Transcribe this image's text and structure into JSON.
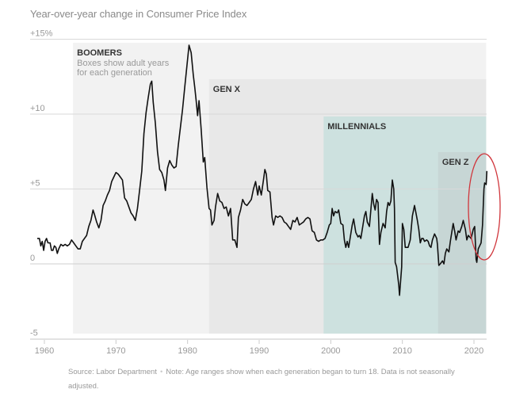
{
  "chart_data": {
    "type": "line",
    "title": "Year-over-year change in Consumer Price Index",
    "xlabel": "",
    "ylabel": "",
    "xlim": [
      1958.5,
      2022
    ],
    "ylim": [
      -5,
      15
    ],
    "grid": true,
    "y_ticks": [
      {
        "value": 15,
        "label": "+15%"
      },
      {
        "value": 10,
        "label": "+10"
      },
      {
        "value": 5,
        "label": "+5"
      },
      {
        "value": 0,
        "label": "0"
      },
      {
        "value": -5,
        "label": "-5"
      }
    ],
    "x_ticks": [
      {
        "value": 1960,
        "label": "1960"
      },
      {
        "value": 1970,
        "label": "1970"
      },
      {
        "value": 1980,
        "label": "1980"
      },
      {
        "value": 1990,
        "label": "1990"
      },
      {
        "value": 2000,
        "label": "2000"
      },
      {
        "value": 2010,
        "label": "2010"
      },
      {
        "value": 2020,
        "label": "2020"
      }
    ],
    "generations": [
      {
        "name": "BOOMERS",
        "start": 1964,
        "end": 2021.7,
        "subtitle": [
          "Boxes show adult years",
          "for each generation"
        ],
        "fill": "#f2f2f2"
      },
      {
        "name": "GEN X",
        "start": 1983,
        "end": 2021.7,
        "fill": "#e8e8e8"
      },
      {
        "name": "MILLENNIALS",
        "start": 1999,
        "end": 2021.7,
        "fill": "#cde1df"
      },
      {
        "name": "GEN Z",
        "start": 2015,
        "end": 2021.7,
        "fill": "#c7d6d5"
      }
    ],
    "annotation": {
      "type": "ellipse",
      "color": "#d0353b",
      "around": "2021 spike"
    },
    "series": [
      {
        "name": "CPI year-over-year change (%)",
        "color": "#111111",
        "points": [
          [
            1959.0,
            1.7
          ],
          [
            1959.3,
            1.7
          ],
          [
            1959.5,
            1.2
          ],
          [
            1959.7,
            1.5
          ],
          [
            1959.9,
            0.9
          ],
          [
            1960.1,
            1.5
          ],
          [
            1960.3,
            1.7
          ],
          [
            1960.5,
            1.4
          ],
          [
            1960.8,
            1.4
          ],
          [
            1961.0,
            0.9
          ],
          [
            1961.2,
            0.9
          ],
          [
            1961.4,
            1.2
          ],
          [
            1961.6,
            1.1
          ],
          [
            1961.8,
            0.7
          ],
          [
            1962.0,
            1.0
          ],
          [
            1962.3,
            1.3
          ],
          [
            1962.6,
            1.2
          ],
          [
            1962.9,
            1.3
          ],
          [
            1963.2,
            1.2
          ],
          [
            1963.5,
            1.3
          ],
          [
            1963.8,
            1.6
          ],
          [
            1964.1,
            1.4
          ],
          [
            1964.4,
            1.2
          ],
          [
            1964.7,
            1.0
          ],
          [
            1965.0,
            1.0
          ],
          [
            1965.3,
            1.5
          ],
          [
            1965.6,
            1.7
          ],
          [
            1965.9,
            1.9
          ],
          [
            1966.2,
            2.5
          ],
          [
            1966.5,
            2.9
          ],
          [
            1966.8,
            3.6
          ],
          [
            1967.0,
            3.3
          ],
          [
            1967.3,
            2.8
          ],
          [
            1967.6,
            2.4
          ],
          [
            1967.9,
            2.9
          ],
          [
            1968.2,
            3.9
          ],
          [
            1968.5,
            4.2
          ],
          [
            1968.8,
            4.6
          ],
          [
            1969.1,
            4.9
          ],
          [
            1969.4,
            5.5
          ],
          [
            1969.7,
            5.8
          ],
          [
            1970.0,
            6.1
          ],
          [
            1970.3,
            6.0
          ],
          [
            1970.6,
            5.8
          ],
          [
            1970.9,
            5.6
          ],
          [
            1971.2,
            4.4
          ],
          [
            1971.5,
            4.2
          ],
          [
            1971.8,
            3.8
          ],
          [
            1972.1,
            3.4
          ],
          [
            1972.4,
            3.2
          ],
          [
            1972.7,
            2.9
          ],
          [
            1973.0,
            3.7
          ],
          [
            1973.3,
            4.9
          ],
          [
            1973.6,
            6.2
          ],
          [
            1973.9,
            8.7
          ],
          [
            1974.2,
            10.1
          ],
          [
            1974.5,
            11.1
          ],
          [
            1974.8,
            12.0
          ],
          [
            1975.0,
            12.2
          ],
          [
            1975.2,
            10.8
          ],
          [
            1975.5,
            9.4
          ],
          [
            1975.8,
            7.5
          ],
          [
            1976.1,
            6.3
          ],
          [
            1976.4,
            6.1
          ],
          [
            1976.7,
            5.6
          ],
          [
            1976.9,
            4.9
          ],
          [
            1977.2,
            6.4
          ],
          [
            1977.5,
            6.9
          ],
          [
            1977.8,
            6.6
          ],
          [
            1978.1,
            6.4
          ],
          [
            1978.4,
            6.5
          ],
          [
            1978.7,
            7.9
          ],
          [
            1979.0,
            9.1
          ],
          [
            1979.3,
            10.3
          ],
          [
            1979.6,
            11.8
          ],
          [
            1979.9,
            13.2
          ],
          [
            1980.2,
            14.6
          ],
          [
            1980.5,
            14.1
          ],
          [
            1980.8,
            12.6
          ],
          [
            1981.0,
            11.8
          ],
          [
            1981.2,
            10.9
          ],
          [
            1981.4,
            9.9
          ],
          [
            1981.6,
            10.9
          ],
          [
            1981.9,
            9.0
          ],
          [
            1982.2,
            6.8
          ],
          [
            1982.4,
            7.1
          ],
          [
            1982.7,
            5.1
          ],
          [
            1983.0,
            3.7
          ],
          [
            1983.2,
            3.6
          ],
          [
            1983.4,
            2.6
          ],
          [
            1983.7,
            2.9
          ],
          [
            1983.9,
            3.8
          ],
          [
            1984.2,
            4.7
          ],
          [
            1984.5,
            4.2
          ],
          [
            1984.8,
            4.1
          ],
          [
            1985.1,
            3.7
          ],
          [
            1985.4,
            3.8
          ],
          [
            1985.7,
            3.2
          ],
          [
            1986.0,
            3.7
          ],
          [
            1986.3,
            1.6
          ],
          [
            1986.6,
            1.6
          ],
          [
            1986.9,
            1.1
          ],
          [
            1987.1,
            3.1
          ],
          [
            1987.4,
            3.6
          ],
          [
            1987.7,
            4.3
          ],
          [
            1988.0,
            4.0
          ],
          [
            1988.3,
            3.9
          ],
          [
            1988.6,
            4.1
          ],
          [
            1988.9,
            4.3
          ],
          [
            1989.2,
            5.0
          ],
          [
            1989.5,
            5.5
          ],
          [
            1989.8,
            4.6
          ],
          [
            1990.0,
            5.2
          ],
          [
            1990.3,
            4.6
          ],
          [
            1990.6,
            5.6
          ],
          [
            1990.8,
            6.3
          ],
          [
            1991.0,
            6.0
          ],
          [
            1991.2,
            4.9
          ],
          [
            1991.5,
            4.8
          ],
          [
            1991.8,
            3.1
          ],
          [
            1992.0,
            2.6
          ],
          [
            1992.3,
            3.2
          ],
          [
            1992.6,
            3.1
          ],
          [
            1992.9,
            3.2
          ],
          [
            1993.2,
            3.1
          ],
          [
            1993.5,
            2.8
          ],
          [
            1993.8,
            2.7
          ],
          [
            1994.1,
            2.5
          ],
          [
            1994.4,
            2.3
          ],
          [
            1994.7,
            2.9
          ],
          [
            1995.0,
            2.8
          ],
          [
            1995.3,
            3.1
          ],
          [
            1995.6,
            2.6
          ],
          [
            1995.9,
            2.7
          ],
          [
            1996.2,
            2.8
          ],
          [
            1996.5,
            3.0
          ],
          [
            1996.8,
            3.1
          ],
          [
            1997.1,
            3.0
          ],
          [
            1997.4,
            2.2
          ],
          [
            1997.7,
            2.1
          ],
          [
            1998.0,
            1.6
          ],
          [
            1998.3,
            1.5
          ],
          [
            1998.6,
            1.6
          ],
          [
            1998.9,
            1.6
          ],
          [
            1999.2,
            1.7
          ],
          [
            1999.5,
            2.1
          ],
          [
            1999.8,
            2.6
          ],
          [
            2000.0,
            2.7
          ],
          [
            2000.2,
            3.7
          ],
          [
            2000.4,
            3.2
          ],
          [
            2000.6,
            3.5
          ],
          [
            2000.9,
            3.4
          ],
          [
            2001.1,
            3.6
          ],
          [
            2001.4,
            2.7
          ],
          [
            2001.7,
            2.6
          ],
          [
            2001.9,
            1.6
          ],
          [
            2002.1,
            1.1
          ],
          [
            2002.3,
            1.5
          ],
          [
            2002.5,
            1.1
          ],
          [
            2002.8,
            2.0
          ],
          [
            2003.0,
            2.6
          ],
          [
            2003.2,
            3.0
          ],
          [
            2003.5,
            2.1
          ],
          [
            2003.8,
            1.8
          ],
          [
            2004.0,
            1.9
          ],
          [
            2004.2,
            1.7
          ],
          [
            2004.4,
            2.3
          ],
          [
            2004.7,
            3.2
          ],
          [
            2004.9,
            3.5
          ],
          [
            2005.1,
            2.8
          ],
          [
            2005.4,
            2.5
          ],
          [
            2005.6,
            3.6
          ],
          [
            2005.8,
            4.7
          ],
          [
            2006.0,
            4.0
          ],
          [
            2006.2,
            3.6
          ],
          [
            2006.4,
            4.3
          ],
          [
            2006.6,
            4.1
          ],
          [
            2006.8,
            1.3
          ],
          [
            2007.0,
            2.1
          ],
          [
            2007.3,
            2.7
          ],
          [
            2007.6,
            2.4
          ],
          [
            2007.8,
            3.5
          ],
          [
            2008.0,
            4.1
          ],
          [
            2008.2,
            3.9
          ],
          [
            2008.4,
            4.2
          ],
          [
            2008.6,
            5.6
          ],
          [
            2008.8,
            5.0
          ],
          [
            2008.9,
            3.7
          ],
          [
            2009.0,
            0.1
          ],
          [
            2009.2,
            -0.2
          ],
          [
            2009.5,
            -1.4
          ],
          [
            2009.6,
            -2.1
          ],
          [
            2009.9,
            -0.2
          ],
          [
            2010.0,
            2.7
          ],
          [
            2010.2,
            2.3
          ],
          [
            2010.4,
            1.1
          ],
          [
            2010.6,
            1.1
          ],
          [
            2010.8,
            1.1
          ],
          [
            2011.1,
            1.6
          ],
          [
            2011.4,
            3.2
          ],
          [
            2011.7,
            3.9
          ],
          [
            2011.9,
            3.4
          ],
          [
            2012.1,
            2.9
          ],
          [
            2012.3,
            2.3
          ],
          [
            2012.5,
            1.4
          ],
          [
            2012.7,
            1.7
          ],
          [
            2012.9,
            1.7
          ],
          [
            2013.1,
            1.5
          ],
          [
            2013.4,
            1.6
          ],
          [
            2013.6,
            1.5
          ],
          [
            2013.8,
            1.2
          ],
          [
            2014.0,
            1.1
          ],
          [
            2014.2,
            1.6
          ],
          [
            2014.5,
            2.0
          ],
          [
            2014.8,
            1.7
          ],
          [
            2014.9,
            1.3
          ],
          [
            2015.1,
            -0.1
          ],
          [
            2015.3,
            0.0
          ],
          [
            2015.6,
            0.2
          ],
          [
            2015.8,
            0.0
          ],
          [
            2016.0,
            0.7
          ],
          [
            2016.2,
            1.0
          ],
          [
            2016.5,
            0.8
          ],
          [
            2016.7,
            1.5
          ],
          [
            2016.9,
            2.1
          ],
          [
            2017.1,
            2.7
          ],
          [
            2017.3,
            2.2
          ],
          [
            2017.5,
            1.6
          ],
          [
            2017.8,
            2.2
          ],
          [
            2018.0,
            2.1
          ],
          [
            2018.3,
            2.5
          ],
          [
            2018.5,
            2.9
          ],
          [
            2018.8,
            2.3
          ],
          [
            2019.0,
            1.6
          ],
          [
            2019.2,
            1.9
          ],
          [
            2019.4,
            1.8
          ],
          [
            2019.6,
            1.7
          ],
          [
            2019.9,
            2.3
          ],
          [
            2020.1,
            2.5
          ],
          [
            2020.3,
            0.3
          ],
          [
            2020.4,
            0.1
          ],
          [
            2020.6,
            1.0
          ],
          [
            2020.8,
            1.2
          ],
          [
            2021.0,
            1.4
          ],
          [
            2021.2,
            2.6
          ],
          [
            2021.4,
            5.0
          ],
          [
            2021.5,
            5.4
          ],
          [
            2021.7,
            5.3
          ],
          [
            2021.8,
            6.2
          ]
        ]
      }
    ]
  },
  "footer": {
    "source": "Source: Labor Department",
    "note": "Note: Age ranges show when each generation began to turn 18. Data is not seasonally adjusted."
  }
}
